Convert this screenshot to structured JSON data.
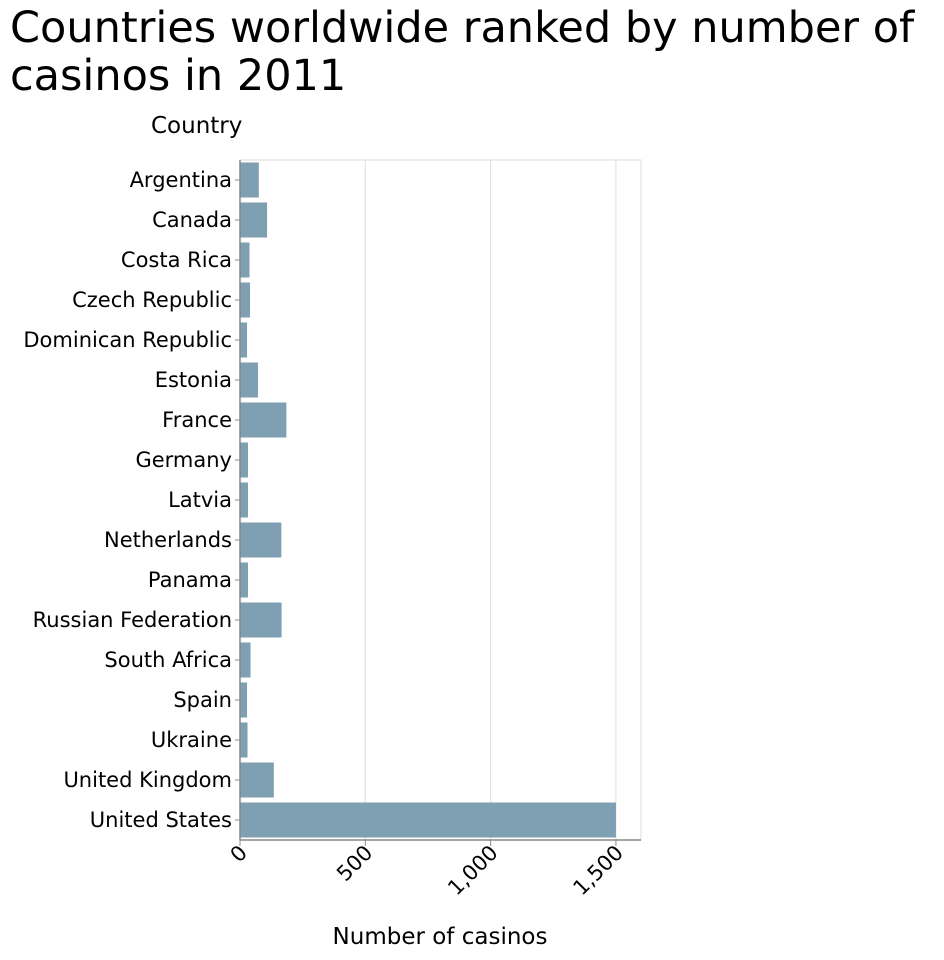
{
  "chart_data": {
    "type": "bar",
    "orientation": "horizontal",
    "title": "Countries worldwide ranked by number of casinos in 2011",
    "xlabel": "Number of casinos",
    "ylabel": "Country",
    "xlim": [
      0,
      1600
    ],
    "xticks": [
      0,
      500,
      1000,
      1500
    ],
    "xtick_labels": [
      "0",
      "500",
      "1,000",
      "1,500"
    ],
    "grid": "vertical",
    "bar_color": "#7f9fb3",
    "categories": [
      "Argentina",
      "Canada",
      "Costa Rica",
      "Czech Republic",
      "Dominican Republic",
      "Estonia",
      "France",
      "Germany",
      "Latvia",
      "Netherlands",
      "Panama",
      "Russian Federation",
      "South Africa",
      "Spain",
      "Ukraine",
      "United Kingdom",
      "United States"
    ],
    "values": [
      75,
      108,
      38,
      40,
      28,
      72,
      185,
      32,
      32,
      165,
      32,
      166,
      42,
      28,
      30,
      135,
      1500
    ]
  }
}
